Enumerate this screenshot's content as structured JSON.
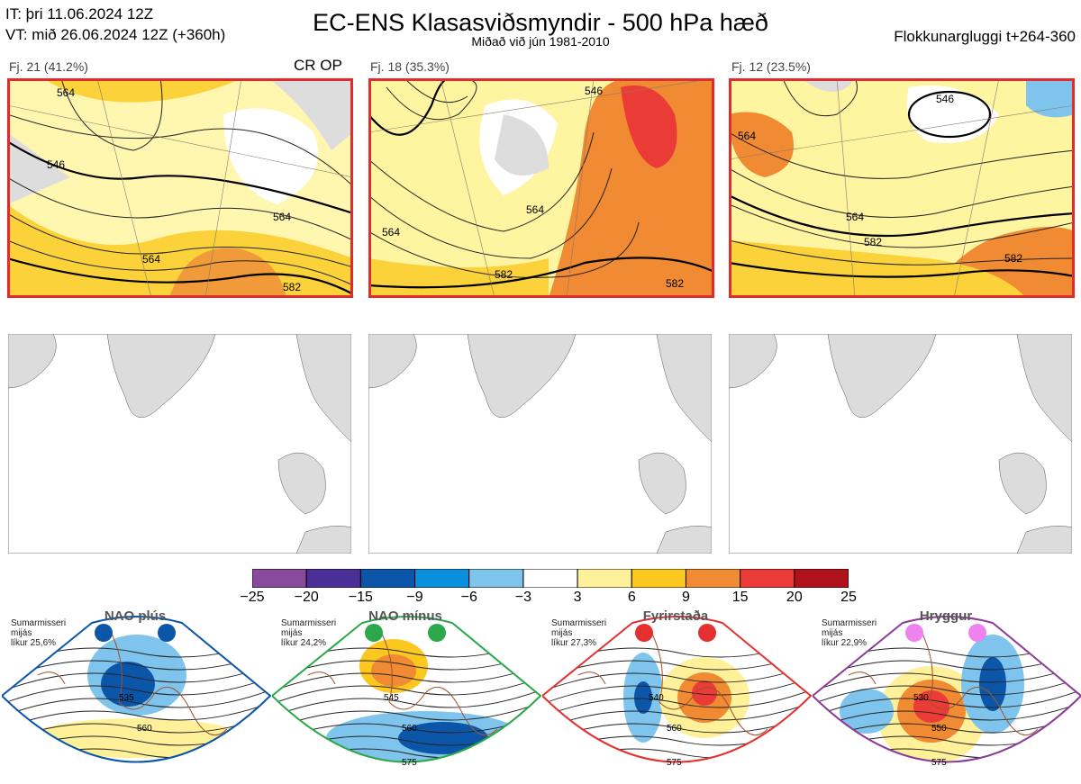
{
  "header": {
    "init_line": "IT: þri 11.06.2024 12Z",
    "valid_line": "VT: mið 26.06.2024 12Z  (+360h)",
    "title": "EC-ENS Klasasviðsmyndir - 500 hPa hæð",
    "subtitle": "Miðað við jún 1981-2010",
    "window": "Flokkunargluggi t+264-360"
  },
  "clusters": [
    {
      "label": "Fj. 21 (41.2%)",
      "members": 21,
      "percent": 41.2,
      "tag": "CR OP",
      "contours": [
        "564",
        "564",
        "564",
        "582",
        "546"
      ]
    },
    {
      "label": "Fj. 18 (35.3%)",
      "members": 18,
      "percent": 35.3,
      "tag": "",
      "contours": [
        "564",
        "564",
        "582",
        "546",
        "582"
      ]
    },
    {
      "label": "Fj. 12 (23.5%)",
      "members": 12,
      "percent": 23.5,
      "tag": "",
      "contours": [
        "546",
        "564",
        "564",
        "582",
        "582"
      ]
    }
  ],
  "colorbar": {
    "ticks": [
      "−25",
      "−20",
      "−15",
      "−9",
      "−6",
      "−3",
      "3",
      "6",
      "9",
      "15",
      "20",
      "25"
    ],
    "colors": [
      "#8a4a9c",
      "#4b2f96",
      "#0b56a8",
      "#0a8fdc",
      "#7fc4ec",
      "#ffffff",
      "#fff09a",
      "#fcc820",
      "#f08a33",
      "#ea3b37",
      "#b0121c"
    ]
  },
  "regimes": [
    {
      "name": "NAO plús",
      "note": [
        "Sumarmisseri",
        "mijás",
        "líkur 25,6%"
      ],
      "probability": 25.6,
      "color": "#0b56a8",
      "dot_color": "#0b56a8",
      "contours": [
        "535",
        "560"
      ]
    },
    {
      "name": "NAO mínus",
      "note": [
        "Sumarmisseri",
        "mijás",
        "líkur 24,2%"
      ],
      "probability": 24.2,
      "color": "#2aa84a",
      "dot_color": "#2aa84a",
      "contours": [
        "545",
        "560",
        "575"
      ]
    },
    {
      "name": "Fyrirstaða",
      "note": [
        "Sumarmisseri",
        "mijás",
        "líkur 27,3%"
      ],
      "probability": 27.3,
      "color": "#e53030",
      "dot_color": "#e53030",
      "contours": [
        "540",
        "560",
        "575"
      ]
    },
    {
      "name": "Hryggur",
      "note": [
        "Sumarmisseri",
        "mijás",
        "líkur 22,9%"
      ],
      "probability": 22.9,
      "color": "#8b3a96",
      "dot_color": "#ee82ee",
      "contours": [
        "530",
        "550",
        "575"
      ]
    }
  ],
  "chart_data": [
    {
      "type": "heatmap",
      "title": "Fj. 21 (41.2%)",
      "variable": "500 hPa height anomaly",
      "contour_labels": [
        564,
        564,
        564,
        582,
        546
      ]
    },
    {
      "type": "heatmap",
      "title": "Fj. 18 (35.3%)",
      "variable": "500 hPa height anomaly",
      "contour_labels": [
        564,
        564,
        582,
        546,
        582
      ]
    },
    {
      "type": "heatmap",
      "title": "Fj. 12 (23.5%)",
      "variable": "500 hPa height anomaly",
      "contour_labels": [
        546,
        564,
        564,
        582,
        582
      ]
    },
    {
      "type": "heatmap",
      "title": "NAO plús",
      "probability": 25.6,
      "contour_labels": [
        535,
        560
      ]
    },
    {
      "type": "heatmap",
      "title": "NAO mínus",
      "probability": 24.2,
      "contour_labels": [
        545,
        560,
        575
      ]
    },
    {
      "type": "heatmap",
      "title": "Fyrirstaða",
      "probability": 27.3,
      "contour_labels": [
        540,
        560,
        575
      ]
    },
    {
      "type": "heatmap",
      "title": "Hryggur",
      "probability": 22.9,
      "contour_labels": [
        530,
        550,
        575
      ]
    }
  ]
}
